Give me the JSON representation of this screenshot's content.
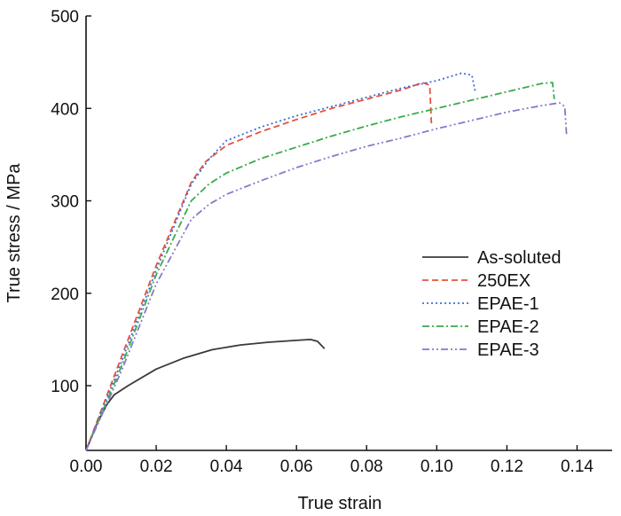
{
  "chart_data": {
    "type": "line",
    "title": "",
    "xlabel": "True strain",
    "ylabel": "True stress / MPa",
    "xlim": [
      0,
      0.15
    ],
    "ylim": [
      30,
      500
    ],
    "xticks": [
      "0.00",
      "0.02",
      "0.04",
      "0.06",
      "0.08",
      "0.10",
      "0.12",
      "0.14"
    ],
    "yticks": [
      "100",
      "200",
      "300",
      "400",
      "500"
    ],
    "grid": false,
    "legend_position": "lower-right",
    "series": [
      {
        "name": "As-soluted",
        "color": "#3a3a3a",
        "dash": "solid",
        "x": [
          0.0,
          0.003,
          0.006,
          0.008,
          0.012,
          0.02,
          0.028,
          0.036,
          0.044,
          0.052,
          0.06,
          0.064,
          0.066,
          0.068
        ],
        "y": [
          30,
          58,
          80,
          90,
          100,
          118,
          130,
          139,
          144,
          147,
          149,
          150,
          148,
          140
        ]
      },
      {
        "name": "250EX",
        "color": "#e8503a",
        "dash": "dashed",
        "x": [
          0.0,
          0.01,
          0.02,
          0.03,
          0.034,
          0.04,
          0.05,
          0.06,
          0.07,
          0.08,
          0.09,
          0.096,
          0.098,
          0.0985
        ],
        "y": [
          30,
          130,
          230,
          320,
          342,
          360,
          375,
          388,
          400,
          410,
          420,
          428,
          425,
          382
        ]
      },
      {
        "name": "EPAE-1",
        "color": "#3a6fd8",
        "dash": "dotted",
        "x": [
          0.0,
          0.01,
          0.02,
          0.03,
          0.035,
          0.04,
          0.05,
          0.06,
          0.07,
          0.08,
          0.09,
          0.1,
          0.107,
          0.11,
          0.111
        ],
        "y": [
          30,
          125,
          225,
          318,
          345,
          365,
          380,
          392,
          402,
          412,
          422,
          430,
          438,
          436,
          418
        ]
      },
      {
        "name": "EPAE-2",
        "color": "#3aaa4a",
        "dash": "dashdot",
        "x": [
          0.0,
          0.01,
          0.02,
          0.03,
          0.035,
          0.04,
          0.05,
          0.06,
          0.07,
          0.08,
          0.09,
          0.1,
          0.11,
          0.12,
          0.13,
          0.133,
          0.1335
        ],
        "y": [
          30,
          120,
          220,
          300,
          318,
          330,
          346,
          358,
          370,
          381,
          391,
          400,
          409,
          418,
          427,
          428,
          410
        ]
      },
      {
        "name": "EPAE-3",
        "color": "#8a78c8",
        "dash": "dashdotdot",
        "x": [
          0.0,
          0.01,
          0.02,
          0.03,
          0.035,
          0.04,
          0.05,
          0.06,
          0.07,
          0.08,
          0.09,
          0.1,
          0.11,
          0.12,
          0.13,
          0.135,
          0.1365,
          0.137
        ],
        "y": [
          30,
          115,
          210,
          280,
          296,
          307,
          322,
          336,
          348,
          359,
          368,
          378,
          387,
          396,
          403,
          406,
          402,
          372
        ]
      }
    ]
  }
}
